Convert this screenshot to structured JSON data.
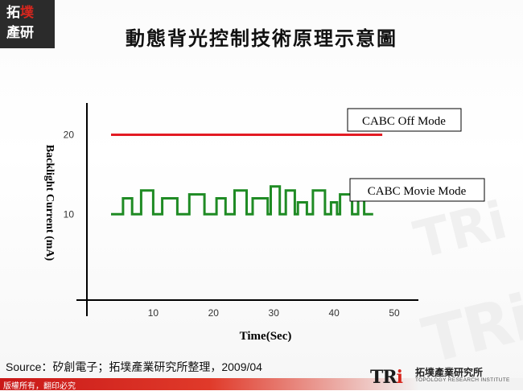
{
  "slide": {
    "title": "動態背光控制技術原理示意圖",
    "source": "Source：矽創電子；拓墣產業研究所整理，2009/04",
    "copyright": "版權所有，翻印必究",
    "logo_top": {
      "line1_a": "拓",
      "line1_b": "墣",
      "line2": "產研"
    },
    "brand": {
      "mark_a": "TR",
      "mark_b": "i",
      "name": "拓墣產業研究所",
      "subtitle": "TOPOLOGY RESEARCH INSTITUTE"
    },
    "watermark": "TRi"
  },
  "chart_data": {
    "type": "line",
    "xlabel": "Time(Sec)",
    "ylabel": "Backlight Current (mA)",
    "x_ticks": [
      10,
      20,
      30,
      40,
      50
    ],
    "y_ticks": [
      10,
      20
    ],
    "xlim": [
      -1,
      54
    ],
    "ylim": [
      -0.8,
      24
    ],
    "grid": false,
    "series": [
      {
        "name": "CABC Off Mode",
        "color": "#e31b23",
        "points": [
          [
            3,
            20
          ],
          [
            48,
            20
          ]
        ]
      },
      {
        "name": "CABC Movie Mode",
        "color": "#1f8b24",
        "points": [
          [
            3,
            10
          ],
          [
            5,
            10
          ],
          [
            5,
            12
          ],
          [
            6.5,
            12
          ],
          [
            6.5,
            10
          ],
          [
            8,
            10
          ],
          [
            8,
            13
          ],
          [
            10,
            13
          ],
          [
            10,
            10
          ],
          [
            11.5,
            10
          ],
          [
            11.5,
            12
          ],
          [
            14,
            12
          ],
          [
            14,
            10
          ],
          [
            16,
            10
          ],
          [
            16,
            12.5
          ],
          [
            18.5,
            12.5
          ],
          [
            18.5,
            10
          ],
          [
            20.5,
            10
          ],
          [
            20.5,
            12
          ],
          [
            22,
            12
          ],
          [
            22,
            10
          ],
          [
            23.5,
            10
          ],
          [
            23.5,
            13
          ],
          [
            25.5,
            13
          ],
          [
            25.5,
            10
          ],
          [
            26.5,
            10
          ],
          [
            26.5,
            12
          ],
          [
            29,
            12
          ],
          [
            29,
            10
          ],
          [
            29.5,
            10
          ],
          [
            29.5,
            13.5
          ],
          [
            31,
            13.5
          ],
          [
            31,
            10
          ],
          [
            32,
            10
          ],
          [
            32,
            13
          ],
          [
            33.5,
            13
          ],
          [
            33.5,
            10
          ],
          [
            34,
            10
          ],
          [
            34,
            11.5
          ],
          [
            35.5,
            11.5
          ],
          [
            35.5,
            10
          ],
          [
            36.5,
            10
          ],
          [
            36.5,
            13
          ],
          [
            38.5,
            13
          ],
          [
            38.5,
            10
          ],
          [
            39.5,
            10
          ],
          [
            39.5,
            11.5
          ],
          [
            40.5,
            11.5
          ],
          [
            40.5,
            10
          ],
          [
            41,
            10
          ],
          [
            41,
            12.5
          ],
          [
            43,
            12.5
          ],
          [
            43,
            10
          ],
          [
            44,
            10
          ],
          [
            44,
            12
          ],
          [
            45,
            12
          ],
          [
            45,
            10
          ],
          [
            46.5,
            10
          ]
        ]
      }
    ]
  }
}
